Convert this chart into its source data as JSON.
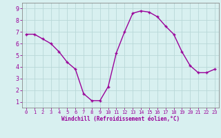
{
  "x": [
    0,
    1,
    2,
    3,
    4,
    5,
    6,
    7,
    8,
    9,
    10,
    11,
    12,
    13,
    14,
    15,
    16,
    17,
    18,
    19,
    20,
    21,
    22,
    23
  ],
  "y": [
    6.8,
    6.8,
    6.4,
    6.0,
    5.3,
    4.4,
    3.8,
    1.7,
    1.1,
    1.1,
    2.3,
    5.2,
    7.0,
    8.6,
    8.8,
    8.7,
    8.3,
    7.5,
    6.8,
    5.3,
    4.1,
    3.5,
    3.5,
    3.8
  ],
  "line_color": "#990099",
  "marker": "+",
  "marker_size": 3,
  "line_width": 1.0,
  "xlabel": "Windchill (Refroidissement éolien,°C)",
  "xlabel_color": "#990099",
  "bg_color": "#d8f0f0",
  "grid_color": "#b8d8d8",
  "tick_color": "#990099",
  "spine_color": "#888888",
  "xlim_min": -0.5,
  "xlim_max": 23.5,
  "ylim_min": 0.5,
  "ylim_max": 9.5,
  "xticks": [
    0,
    1,
    2,
    3,
    4,
    5,
    6,
    7,
    8,
    9,
    10,
    11,
    12,
    13,
    14,
    15,
    16,
    17,
    18,
    19,
    20,
    21,
    22,
    23
  ],
  "yticks": [
    1,
    2,
    3,
    4,
    5,
    6,
    7,
    8,
    9
  ]
}
